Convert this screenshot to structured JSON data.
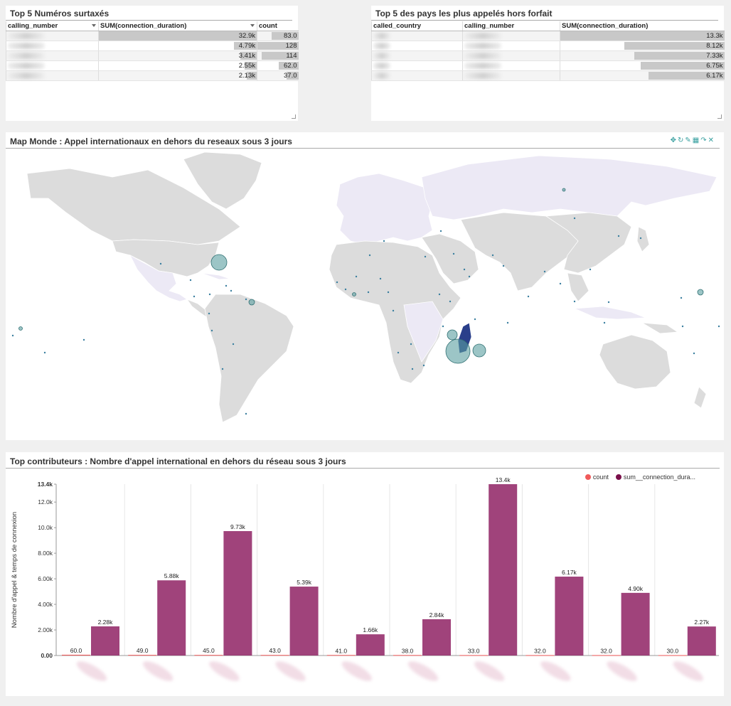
{
  "table1": {
    "title": "Top 5 Numéros surtaxés",
    "columns": [
      "calling_number",
      "SUM(connection_duration)",
      "count"
    ],
    "rows": [
      {
        "sum": "32.9k",
        "sum_value": 32900,
        "count": "83.0",
        "count_value": 83
      },
      {
        "sum": "4.79k",
        "sum_value": 4790,
        "count": "128",
        "count_value": 128
      },
      {
        "sum": "3.41k",
        "sum_value": 3410,
        "count": "114",
        "count_value": 114
      },
      {
        "sum": "2.55k",
        "sum_value": 2550,
        "count": "62.0",
        "count_value": 62
      },
      {
        "sum": "2.13k",
        "sum_value": 2130,
        "count": "37.0",
        "count_value": 37
      }
    ]
  },
  "table2": {
    "title": "Top 5 des pays les plus appelés hors forfait",
    "columns": [
      "called_country",
      "calling_number",
      "SUM(connection_duration)"
    ],
    "rows": [
      {
        "sum": "13.3k",
        "sum_value": 13300
      },
      {
        "sum": "8.12k",
        "sum_value": 8120
      },
      {
        "sum": "7.33k",
        "sum_value": 7330
      },
      {
        "sum": "6.75k",
        "sum_value": 6750
      },
      {
        "sum": "6.17k",
        "sum_value": 6170
      }
    ]
  },
  "map": {
    "title": "Map Monde : Appel internationaux en dehors du reseaux sous 3 jours",
    "toolbar_icons": [
      "move-icon",
      "refresh-icon",
      "edit-icon",
      "table-icon",
      "share-icon",
      "close-icon"
    ],
    "colors": {
      "land": "#dcdcdc",
      "highlight": "#ece9f5",
      "ocean": "#ffffff",
      "bubble": "#5a9ea0",
      "madagascar": "#2a3f8a"
    }
  },
  "bar_panel": {
    "title": "Top contributeurs : Nombre d'appel international en dehors du réseau sous 3 jours"
  },
  "chart_data": {
    "type": "bar",
    "title": "",
    "ylabel": "Nombre d'appel & temps de connexion",
    "xlabel": "",
    "ylim": [
      0,
      13400
    ],
    "y_ticks": [
      "0.00",
      "2.00k",
      "4.00k",
      "6.00k",
      "8.00k",
      "10.0k",
      "12.0k",
      "13.4k"
    ],
    "y_tick_values": [
      0,
      2000,
      4000,
      6000,
      8000,
      10000,
      12000,
      13400
    ],
    "legend_position": "top-right",
    "grid": true,
    "series": [
      {
        "name": "count",
        "color": "#f05a5a",
        "values": [
          60,
          49,
          45,
          43,
          41,
          38,
          33,
          32,
          32,
          30
        ],
        "labels": [
          "60.0",
          "49.0",
          "45.0",
          "43.0",
          "41.0",
          "38.0",
          "33.0",
          "32.0",
          "32.0",
          "30.0"
        ]
      },
      {
        "name": "sum__connection_dura...",
        "color": "#8b1a5e",
        "values": [
          2280,
          5880,
          9730,
          5390,
          1660,
          2840,
          13400,
          6170,
          4900,
          2270
        ],
        "labels": [
          "2.28k",
          "5.88k",
          "9.73k",
          "5.39k",
          "1.66k",
          "2.84k",
          "13.4k",
          "6.17k",
          "4.90k",
          "2.27k"
        ]
      }
    ]
  }
}
